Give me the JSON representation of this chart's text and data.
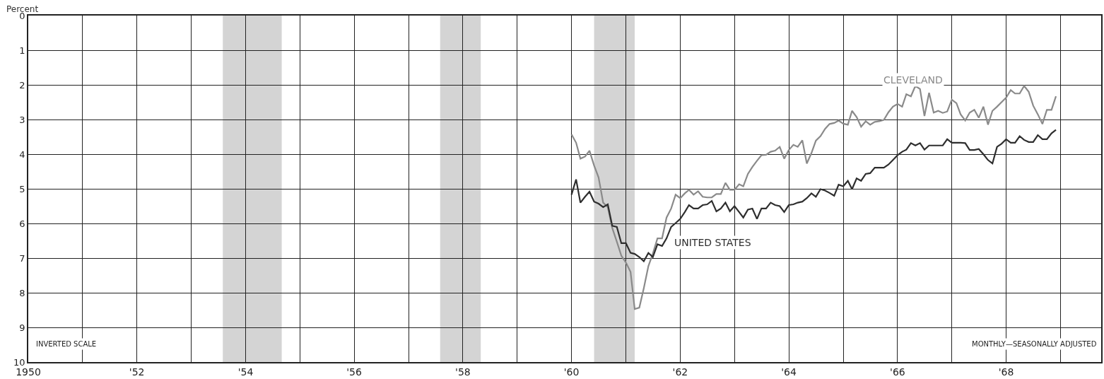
{
  "chart_data": {
    "type": "line",
    "ylabel": "Percent",
    "xlim": [
      "1950-01",
      "1969-10"
    ],
    "ylim": [
      10,
      0
    ],
    "yticks": [
      0,
      1,
      2,
      3,
      4,
      5,
      6,
      7,
      8,
      9,
      10
    ],
    "xticks": [
      {
        "value": "1950",
        "label": "1950"
      },
      {
        "value": "1951",
        "label": null
      },
      {
        "value": "1952",
        "label": "'52"
      },
      {
        "value": "1953",
        "label": null
      },
      {
        "value": "1954",
        "label": "'54"
      },
      {
        "value": "1955",
        "label": null
      },
      {
        "value": "1956",
        "label": "'56"
      },
      {
        "value": "1957",
        "label": null
      },
      {
        "value": "1958",
        "label": "'58"
      },
      {
        "value": "1959",
        "label": null
      },
      {
        "value": "1960",
        "label": "'60"
      },
      {
        "value": "1961",
        "label": null
      },
      {
        "value": "1962",
        "label": "'62"
      },
      {
        "value": "1963",
        "label": null
      },
      {
        "value": "1964",
        "label": "'64"
      },
      {
        "value": "1965",
        "label": null
      },
      {
        "value": "1966",
        "label": "'66"
      },
      {
        "value": "1967",
        "label": null
      },
      {
        "value": "1968",
        "label": "'68"
      },
      {
        "value": "1969",
        "label": null
      }
    ],
    "grid": true,
    "legend": false,
    "line_style": "solid",
    "marker": "none",
    "bands": [
      {
        "axis": "x",
        "from": "1953-08",
        "to": "1954-09",
        "color": "#d4d4d4"
      },
      {
        "axis": "x",
        "from": "1957-08",
        "to": "1958-05",
        "color": "#d4d4d4"
      },
      {
        "axis": "x",
        "from": "1960-06",
        "to": "1961-03",
        "color": "#d4d4d4"
      }
    ],
    "annotations": [
      "INVERTED SCALE",
      "MONTHLY—SEASONALLY ADJUSTED"
    ],
    "x": [
      "1960-01",
      "1960-02",
      "1960-03",
      "1960-04",
      "1960-05",
      "1960-06",
      "1960-07",
      "1960-08",
      "1960-09",
      "1960-10",
      "1960-11",
      "1960-12",
      "1961-01",
      "1961-02",
      "1961-03",
      "1961-04",
      "1961-05",
      "1961-06",
      "1961-07",
      "1961-08",
      "1961-09",
      "1961-10",
      "1961-11",
      "1961-12",
      "1962-01",
      "1962-02",
      "1962-03",
      "1962-04",
      "1962-05",
      "1962-06",
      "1962-07",
      "1962-08",
      "1962-09",
      "1962-10",
      "1962-11",
      "1962-12",
      "1963-01",
      "1963-02",
      "1963-03",
      "1963-04",
      "1963-05",
      "1963-06",
      "1963-07",
      "1963-08",
      "1963-09",
      "1963-10",
      "1963-11",
      "1963-12",
      "1964-01",
      "1964-02",
      "1964-03",
      "1964-04",
      "1964-05",
      "1964-06",
      "1964-07",
      "1964-08",
      "1964-09",
      "1964-10",
      "1964-11",
      "1964-12",
      "1965-01",
      "1965-02",
      "1965-03",
      "1965-04",
      "1965-05",
      "1965-06",
      "1965-07",
      "1965-08",
      "1965-09",
      "1965-10",
      "1965-11",
      "1965-12",
      "1966-01",
      "1966-02",
      "1966-03",
      "1966-04",
      "1966-05",
      "1966-06",
      "1966-07",
      "1966-08",
      "1966-09",
      "1966-10",
      "1966-11",
      "1966-12",
      "1967-01",
      "1967-02",
      "1967-03",
      "1967-04",
      "1967-05",
      "1967-06",
      "1967-07",
      "1967-08",
      "1967-09",
      "1967-10",
      "1967-11",
      "1967-12",
      "1968-01",
      "1968-02",
      "1968-03",
      "1968-04",
      "1968-05",
      "1968-06",
      "1968-07",
      "1968-08",
      "1968-09",
      "1968-10",
      "1968-11",
      "1968-12"
    ],
    "series": [
      {
        "name": "CLEVELAND",
        "color": "#8a8a8a",
        "values": [
          3.43,
          3.67,
          4.13,
          4.07,
          3.9,
          4.33,
          4.67,
          5.4,
          5.53,
          6.13,
          6.53,
          6.93,
          7.13,
          7.4,
          8.47,
          8.43,
          7.87,
          7.23,
          6.87,
          6.43,
          6.43,
          5.83,
          5.57,
          5.17,
          5.27,
          5.13,
          5.03,
          5.17,
          5.07,
          5.23,
          5.25,
          5.25,
          5.15,
          5.15,
          4.83,
          5.03,
          5.03,
          4.87,
          4.93,
          4.57,
          4.37,
          4.19,
          4.03,
          4.02,
          3.93,
          3.9,
          3.79,
          4.13,
          3.88,
          3.73,
          3.79,
          3.6,
          4.27,
          3.97,
          3.61,
          3.48,
          3.27,
          3.13,
          3.1,
          3.03,
          3.12,
          3.15,
          2.75,
          2.93,
          3.21,
          3.05,
          3.15,
          3.07,
          3.05,
          3.01,
          2.79,
          2.63,
          2.55,
          2.63,
          2.27,
          2.33,
          2.03,
          2.12,
          2.9,
          2.23,
          2.8,
          2.75,
          2.81,
          2.77,
          2.43,
          2.53,
          2.85,
          3.03,
          2.8,
          2.72,
          2.95,
          2.63,
          3.15,
          2.75,
          2.63,
          2.5,
          2.37,
          2.15,
          2.25,
          2.25,
          2.03,
          2.2,
          2.6,
          2.85,
          3.13,
          2.72,
          2.72,
          2.33
        ]
      },
      {
        "name": "UNITED STATES",
        "color": "#2e2e2e",
        "values": [
          5.17,
          4.73,
          5.4,
          5.23,
          5.08,
          5.37,
          5.43,
          5.53,
          5.45,
          6.07,
          6.1,
          6.57,
          6.57,
          6.85,
          6.88,
          6.97,
          7.09,
          6.85,
          6.97,
          6.6,
          6.65,
          6.43,
          6.1,
          5.99,
          5.87,
          5.67,
          5.47,
          5.57,
          5.57,
          5.47,
          5.45,
          5.35,
          5.65,
          5.57,
          5.4,
          5.65,
          5.5,
          5.67,
          5.83,
          5.6,
          5.57,
          5.87,
          5.57,
          5.57,
          5.4,
          5.47,
          5.5,
          5.67,
          5.47,
          5.45,
          5.4,
          5.37,
          5.27,
          5.13,
          5.23,
          5.01,
          5.05,
          5.12,
          5.2,
          4.88,
          4.93,
          4.77,
          5.01,
          4.7,
          4.77,
          4.57,
          4.55,
          4.39,
          4.39,
          4.39,
          4.3,
          4.17,
          4.03,
          3.93,
          3.87,
          3.68,
          3.75,
          3.68,
          3.87,
          3.75,
          3.75,
          3.75,
          3.75,
          3.57,
          3.67,
          3.67,
          3.67,
          3.68,
          3.88,
          3.88,
          3.85,
          4.0,
          4.17,
          4.27,
          3.79,
          3.7,
          3.57,
          3.67,
          3.67,
          3.48,
          3.59,
          3.65,
          3.65,
          3.45,
          3.57,
          3.57,
          3.4,
          3.3
        ]
      }
    ]
  }
}
